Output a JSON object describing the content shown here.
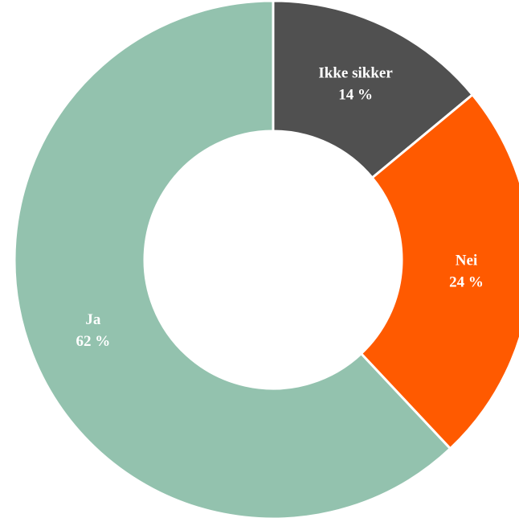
{
  "chart_data": {
    "type": "donut",
    "categories": [
      "Ikke sikker",
      "Nei",
      "Ja"
    ],
    "values": [
      14,
      24,
      62
    ],
    "value_labels": [
      "14 %",
      "24 %",
      "62 %"
    ],
    "colors": [
      "#505050",
      "#ff5a00",
      "#93c2ae"
    ]
  }
}
